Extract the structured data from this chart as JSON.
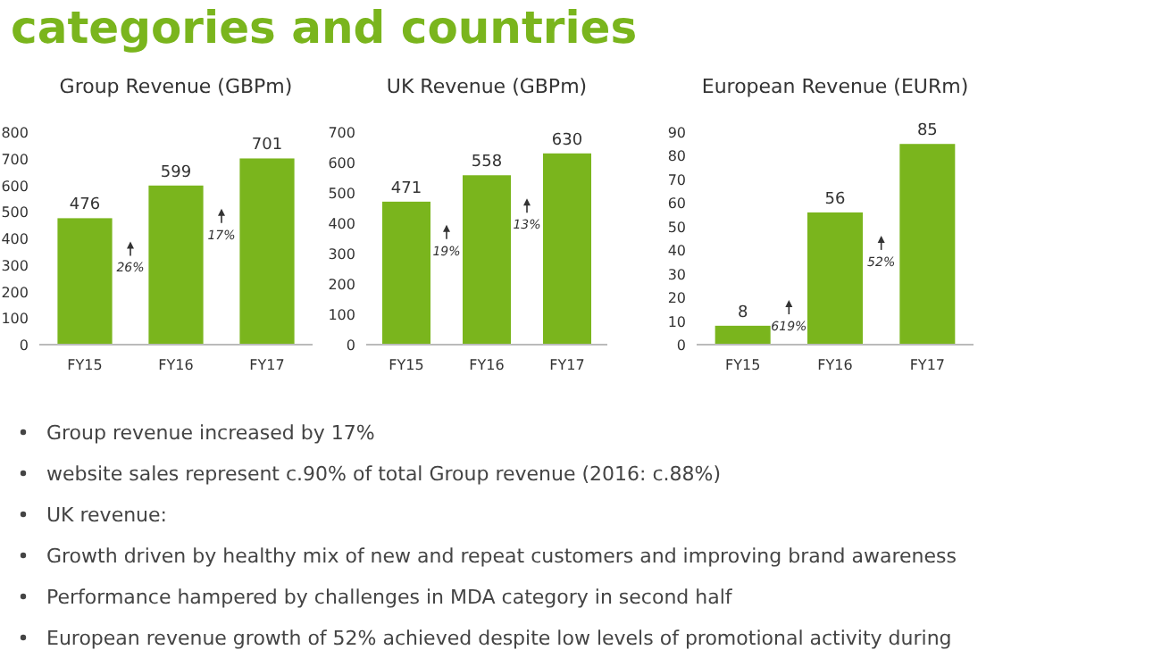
{
  "chart_data": [
    {
      "type": "other",
      "title": "categories and countries",
      "annotations": [
        "Group revenue increased by 17%",
        "website sales represent c.90% of total Group revenue (2016: c.88%)",
        "UK revenue:",
        "Growth driven by healthy mix of new and repeat customers and improving brand awareness",
        "Performance hampered by challenges in MDA category in second half",
        "European revenue growth of 52% achieved despite low levels of promotional activity during"
      ]
    },
    {
      "type": "bar",
      "title": "Group Revenue (GBPm)",
      "categories": [
        "FY15",
        "FY16",
        "FY17"
      ],
      "values": [
        476,
        599,
        701
      ],
      "color": "#7ab51d",
      "ylim": [
        0,
        800
      ],
      "yticks": [
        0,
        100,
        200,
        300,
        400,
        500,
        600,
        700,
        800
      ],
      "data_labels": true,
      "annotations": [
        "26%",
        "17%"
      ]
    },
    {
      "type": "bar",
      "title": "UK Revenue (GBPm)",
      "categories": [
        "FY15",
        "FY16",
        "FY17"
      ],
      "values": [
        471,
        558,
        630
      ],
      "color": "#7ab51d",
      "ylim": [
        0,
        700
      ],
      "yticks": [
        0,
        100,
        200,
        300,
        400,
        500,
        600,
        700
      ],
      "data_labels": true,
      "annotations": [
        "19%",
        "13%"
      ]
    },
    {
      "type": "bar",
      "title": "European Revenue (EURm)",
      "categories": [
        "FY15",
        "FY16",
        "FY17"
      ],
      "values": [
        8,
        56,
        85
      ],
      "color": "#7ab51d",
      "ylim": [
        0,
        90
      ],
      "yticks": [
        0,
        10,
        20,
        30,
        40,
        50,
        60,
        70,
        80,
        90
      ],
      "data_labels": true,
      "annotations": [
        "619%",
        "52%"
      ]
    }
  ]
}
